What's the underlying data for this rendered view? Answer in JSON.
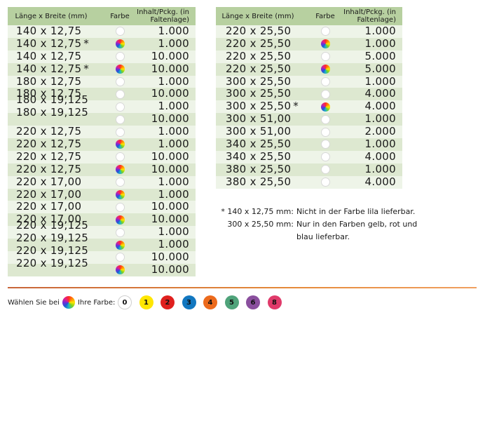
{
  "tables": {
    "headers": {
      "size": "Länge x Breite (mm)",
      "color": "Farbe",
      "qty_line1": "Inhalt/Pckg. (in",
      "qty_line2": "Faltenlage)"
    },
    "left": [
      {
        "size": "140 x 12,75",
        "star": "",
        "color": "white",
        "qty": "1.000"
      },
      {
        "size": "140 x 12,75",
        "star": "*",
        "color": "multi",
        "qty": "1.000"
      },
      {
        "size": "140 x 12,75",
        "star": "",
        "color": "white",
        "qty": "10.000"
      },
      {
        "size": "140 x 12,75",
        "star": "*",
        "color": "multi",
        "qty": "10.000"
      },
      {
        "size": "180 x 12,75",
        "star": "",
        "color": "white",
        "qty": "1.000"
      },
      {
        "size": "180 x 12,75",
        "star": "",
        "color": "white",
        "qty": "10.000"
      },
      {
        "size": "180 x 19,125",
        "star": "",
        "color": "white",
        "qty": "1.000"
      },
      {
        "size": "180 x 19,125",
        "star": "",
        "color": "white",
        "qty": "10.000"
      },
      {
        "size": "220 x 12,75",
        "star": "",
        "color": "white",
        "qty": "1.000"
      },
      {
        "size": "220 x 12,75",
        "star": "",
        "color": "multi",
        "qty": "1.000"
      },
      {
        "size": "220 x 12,75",
        "star": "",
        "color": "white",
        "qty": "10.000"
      },
      {
        "size": "220 x 12,75",
        "star": "",
        "color": "multi",
        "qty": "10.000"
      },
      {
        "size": "220 x 17,00",
        "star": "",
        "color": "white",
        "qty": "1.000"
      },
      {
        "size": "220 x 17,00",
        "star": "",
        "color": "multi",
        "qty": "1.000"
      },
      {
        "size": "220 x 17,00",
        "star": "",
        "color": "white",
        "qty": "10.000"
      },
      {
        "size": "220 x 17,00",
        "star": "",
        "color": "multi",
        "qty": "10.000"
      },
      {
        "size": "220 x 19,125",
        "star": "",
        "color": "white",
        "qty": "1.000"
      },
      {
        "size": "220 x 19,125",
        "star": "",
        "color": "multi",
        "qty": "1.000"
      },
      {
        "size": "220 x 19,125",
        "star": "",
        "color": "white",
        "qty": "10.000"
      },
      {
        "size": "220 x 19,125",
        "star": "",
        "color": "multi",
        "qty": "10.000"
      }
    ],
    "right": [
      {
        "size": "220 x 25,50",
        "star": "",
        "color": "white",
        "qty": "1.000"
      },
      {
        "size": "220 x 25,50",
        "star": "",
        "color": "multi",
        "qty": "1.000"
      },
      {
        "size": "220 x 25,50",
        "star": "",
        "color": "white",
        "qty": "5.000"
      },
      {
        "size": "220 x 25,50",
        "star": "",
        "color": "multi",
        "qty": "5.000"
      },
      {
        "size": "300 x 25,50",
        "star": "",
        "color": "white",
        "qty": "1.000"
      },
      {
        "size": "300 x 25,50",
        "star": "",
        "color": "white",
        "qty": "4.000"
      },
      {
        "size": "300 x 25,50",
        "star": "*",
        "color": "multi",
        "qty": "4.000"
      },
      {
        "size": "300 x 51,00",
        "star": "",
        "color": "white",
        "qty": "1.000"
      },
      {
        "size": "300 x 51,00",
        "star": "",
        "color": "white",
        "qty": "2.000"
      },
      {
        "size": "340 x 25,50",
        "star": "",
        "color": "white",
        "qty": "1.000"
      },
      {
        "size": "340 x 25,50",
        "star": "",
        "color": "white",
        "qty": "4.000"
      },
      {
        "size": "380 x 25,50",
        "star": "",
        "color": "white",
        "qty": "1.000"
      },
      {
        "size": "380 x 25,50",
        "star": "",
        "color": "white",
        "qty": "4.000"
      }
    ]
  },
  "footnote": {
    "line1_key": "* 140 x 12,75 mm:",
    "line1_val": "Nicht in der Farbe lila lieferbar.",
    "line2_key": "300 x 25,50 mm:",
    "line2_val": "Nur in den Farben gelb, rot und",
    "line3_val": "blau lieferbar."
  },
  "legend": {
    "prefix": "Wählen Sie bei",
    "suffix": "Ihre Farbe:",
    "swatches": [
      {
        "label": "0",
        "color": "#ffffff"
      },
      {
        "label": "1",
        "color": "#ffe600"
      },
      {
        "label": "2",
        "color": "#e0201e"
      },
      {
        "label": "3",
        "color": "#1277c0"
      },
      {
        "label": "4",
        "color": "#ec6a1c"
      },
      {
        "label": "5",
        "color": "#4fa37a"
      },
      {
        "label": "6",
        "color": "#8a4f9e"
      },
      {
        "label": "8",
        "color": "#e03a6a"
      }
    ]
  },
  "colors": {
    "header_bg": "#b7d0a0",
    "row_light": "#eef4e8",
    "row_dark": "#dde8d0",
    "divider": "#e07a3a"
  }
}
